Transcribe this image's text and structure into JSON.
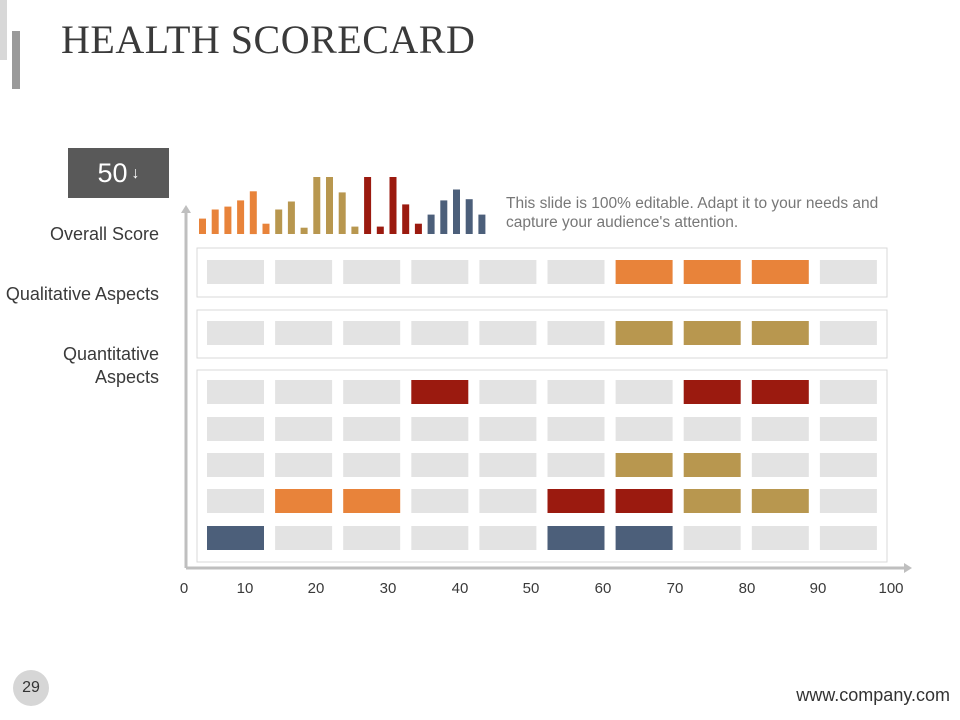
{
  "header": {
    "title": "HEALTH SCORECARD"
  },
  "score_box": {
    "value": "50",
    "arrow": "🠗"
  },
  "description": "This slide is 100% editable. Adapt it to your needs and capture your audience's attention.",
  "footer": {
    "page_number": "29",
    "url": "www.company.com"
  },
  "colors": {
    "orange": "#E8833A",
    "gold": "#B8974F",
    "red": "#9B1A0F",
    "blue": "#4C5F7A",
    "empty": "#E3E3E3",
    "axis": "#BFBFBF",
    "panel_border": "#D9D9D9"
  },
  "chart_data": [
    {
      "type": "heatmap",
      "title": "HEALTH SCORECARD",
      "xlim": [
        0,
        100
      ],
      "x_ticks": [
        "0",
        "10",
        "20",
        "30",
        "40",
        "50",
        "60",
        "70",
        "80",
        "90",
        "100"
      ],
      "column_count": 10,
      "row_labels": [
        "Overall Score",
        "Qualitative Aspects",
        "Quantitative Aspects"
      ],
      "groups": [
        {
          "name": "Overall Score",
          "rows": [
            [
              "",
              "",
              "",
              "",
              "",
              "",
              "orange",
              "orange",
              "orange",
              ""
            ]
          ]
        },
        {
          "name": "Qualitative Aspects",
          "rows": [
            [
              "",
              "",
              "",
              "",
              "",
              "",
              "gold",
              "gold",
              "gold",
              ""
            ]
          ]
        },
        {
          "name": "Quantitative Aspects",
          "rows": [
            [
              "",
              "",
              "",
              "red",
              "",
              "",
              "",
              "red",
              "red",
              ""
            ],
            [
              "",
              "",
              "",
              "",
              "",
              "",
              "",
              "",
              "",
              ""
            ],
            [
              "",
              "",
              "",
              "",
              "",
              "",
              "gold",
              "gold",
              "",
              ""
            ],
            [
              "",
              "orange",
              "orange",
              "",
              "",
              "red",
              "red",
              "gold",
              "gold",
              ""
            ],
            [
              "blue",
              "",
              "",
              "",
              "",
              "blue",
              "blue",
              "",
              "",
              ""
            ]
          ]
        }
      ]
    },
    {
      "type": "bar",
      "title": "",
      "note": "decorative mini bar chart, relative heights 0-1",
      "values": [
        0.27,
        0.43,
        0.48,
        0.59,
        0.75,
        0.18,
        0.43,
        0.57,
        0.11,
        1.0,
        1.0,
        0.73,
        0.13,
        1.0,
        0.13,
        1.0,
        0.52,
        0.18,
        0.34,
        0.59,
        0.78,
        0.61,
        0.34
      ],
      "colors": [
        "orange",
        "orange",
        "orange",
        "orange",
        "orange",
        "orange",
        "gold",
        "gold",
        "gold",
        "gold",
        "gold",
        "gold",
        "gold",
        "red",
        "red",
        "red",
        "red",
        "red",
        "blue",
        "blue",
        "blue",
        "blue",
        "blue"
      ]
    }
  ]
}
